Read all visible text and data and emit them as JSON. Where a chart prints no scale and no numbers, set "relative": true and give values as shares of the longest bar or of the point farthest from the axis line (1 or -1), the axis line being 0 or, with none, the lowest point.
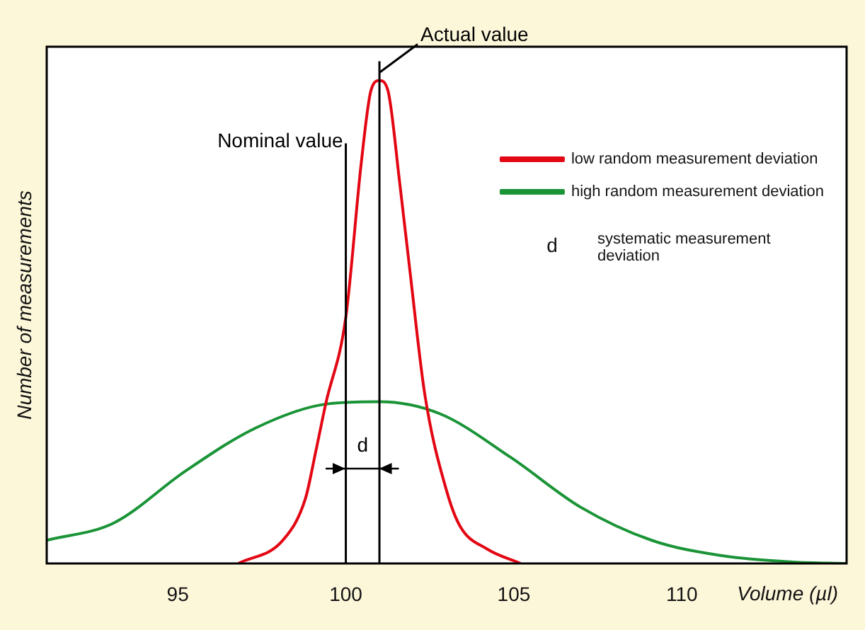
{
  "chart_data": {
    "type": "line",
    "relative": true,
    "xlabel": "Volume (µl)",
    "ylabel": "Number of measurements",
    "xlim": [
      91.1,
      114.9
    ],
    "xticks": [
      95,
      100,
      105,
      110
    ],
    "tick_labels": "x",
    "grid": false,
    "legend": "top right",
    "marker": "none",
    "line_style": "solid",
    "series": [
      {
        "name": "low random measurement deviation",
        "color": "#e30613",
        "x": [
          96.8,
          98.15,
          98.8,
          99.1,
          99.4,
          100,
          100.46,
          100.75,
          101,
          101.25,
          101.6,
          101.9,
          102.35,
          103,
          103.4,
          104.2,
          105.2
        ],
        "values": [
          0,
          0.05,
          0.135,
          0.23,
          0.33,
          0.51,
          0.83,
          0.98,
          1,
          0.98,
          0.79,
          0.61,
          0.35,
          0.15,
          0.077,
          0.03,
          0
        ]
      },
      {
        "name": "high random measurement deviation",
        "color": "#1a9437",
        "x": [
          91.1,
          93.1,
          95.2,
          97.3,
          99.4,
          101,
          102.8,
          104.9,
          107,
          109.1,
          111.2,
          113.3,
          114.9
        ],
        "values": [
          0.048,
          0.084,
          0.19,
          0.28,
          0.33,
          0.335,
          0.31,
          0.22,
          0.116,
          0.048,
          0.016,
          0.003,
          0
        ]
      }
    ],
    "ref_lines": [
      {
        "axis": "x",
        "value": 100,
        "label": "Nominal value",
        "color": "#000000"
      },
      {
        "axis": "x",
        "value": 101,
        "label": "Actual value",
        "color": "#000000"
      }
    ],
    "annotations": [
      "d",
      "d",
      "systematic measurement deviation"
    ]
  }
}
